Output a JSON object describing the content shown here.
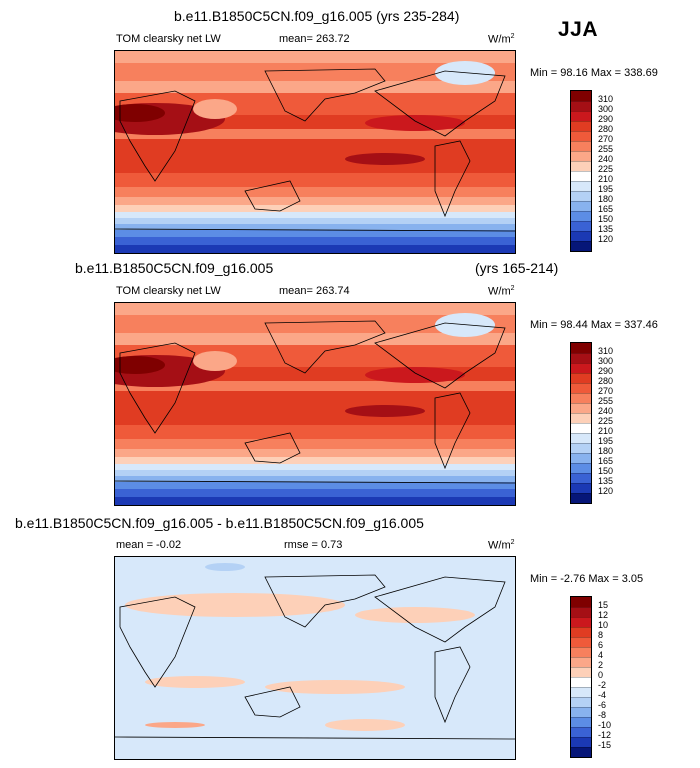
{
  "season": "JJA",
  "panels": [
    {
      "title": "b.e11.B1850C5CN.f09_g16.005 (yrs 235-284)",
      "title_right": "",
      "left_label": "TOM clearsky net LW",
      "mid_label": "mean= 263.72",
      "mid_label2": "",
      "units": "W/m",
      "units_sup": "2",
      "minmax": "Min =  98.16 Max = 338.69",
      "levels": [
        "310",
        "300",
        "290",
        "280",
        "270",
        "255",
        "240",
        "225",
        "210",
        "195",
        "180",
        "165",
        "150",
        "135",
        "120"
      ],
      "colors": [
        "#7f0000",
        "#a50f15",
        "#cb181d",
        "#e03c22",
        "#ef5a3a",
        "#f7805d",
        "#fba788",
        "#fdd0b8",
        "#ffffff",
        "#d7e8fa",
        "#b4d1f5",
        "#88b2ee",
        "#5c8de5",
        "#3a62d4",
        "#1b39b4",
        "#061678"
      ]
    },
    {
      "title": "b.e11.B1850C5CN.f09_g16.005",
      "title_right": "(yrs 165-214)",
      "left_label": "TOM clearsky net LW",
      "mid_label": "mean= 263.74",
      "mid_label2": "",
      "units": "W/m",
      "units_sup": "2",
      "minmax": "Min =  98.44 Max = 337.46",
      "levels": [
        "310",
        "300",
        "290",
        "280",
        "270",
        "255",
        "240",
        "225",
        "210",
        "195",
        "180",
        "165",
        "150",
        "135",
        "120"
      ],
      "colors": [
        "#7f0000",
        "#a50f15",
        "#cb181d",
        "#e03c22",
        "#ef5a3a",
        "#f7805d",
        "#fba788",
        "#fdd0b8",
        "#ffffff",
        "#d7e8fa",
        "#b4d1f5",
        "#88b2ee",
        "#5c8de5",
        "#3a62d4",
        "#1b39b4",
        "#061678"
      ]
    },
    {
      "title": "b.e11.B1850C5CN.f09_g16.005 - b.e11.B1850C5CN.f09_g16.005",
      "title_right": "",
      "left_label": "mean =  -0.02",
      "mid_label": "rmse =   0.73",
      "mid_label2": "",
      "units": "W/m",
      "units_sup": "2",
      "minmax": "Min =  -2.76 Max =   3.05",
      "levels": [
        "15",
        "12",
        "10",
        "8",
        "6",
        "4",
        "2",
        "0",
        "-2",
        "-4",
        "-6",
        "-8",
        "-10",
        "-12",
        "-15"
      ],
      "colors": [
        "#7f0000",
        "#a50f15",
        "#cb181d",
        "#e03c22",
        "#ef5a3a",
        "#f7805d",
        "#fba788",
        "#fdd0b8",
        "#ffffff",
        "#d7e8fa",
        "#b4d1f5",
        "#88b2ee",
        "#5c8de5",
        "#3a62d4",
        "#1b39b4",
        "#061678"
      ]
    }
  ]
}
